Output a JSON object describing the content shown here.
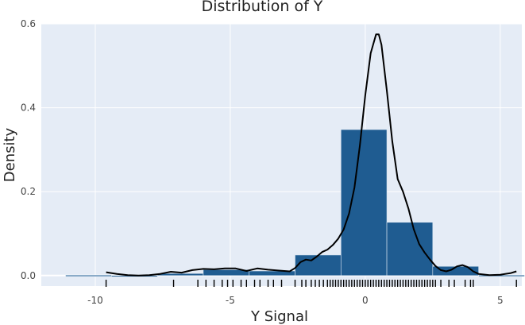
{
  "chart_data": {
    "type": "histogram",
    "title": "Distribution of Y",
    "xlabel": "Y Signal",
    "ylabel": "Density",
    "xlim": [
      -12,
      5.8
    ],
    "ylim": [
      -0.025,
      0.6
    ],
    "x_ticks": [
      -10,
      -5,
      0,
      5
    ],
    "x_tick_labels": [
      "-10",
      "-5",
      "0",
      "5"
    ],
    "y_ticks": [
      0,
      0.2,
      0.4,
      0.6
    ],
    "y_tick_labels": [
      "0.0",
      "0.2",
      "0.4",
      "0.6"
    ],
    "grid": true,
    "colors": {
      "plot_bg": "#e5ecf6",
      "grid": "#ffffff",
      "bar": "#1f5c91",
      "bar_edge": "#dfe9f3",
      "kde": "#000000",
      "rug": "#000000"
    },
    "bins": [
      {
        "x0": -11.1,
        "x1": -9.4,
        "density": 0.001
      },
      {
        "x0": -9.4,
        "x1": -7.7,
        "density": 0.0
      },
      {
        "x0": -7.7,
        "x1": -6.0,
        "density": 0.005
      },
      {
        "x0": -6.0,
        "x1": -4.3,
        "density": 0.014
      },
      {
        "x0": -4.3,
        "x1": -2.6,
        "density": 0.011
      },
      {
        "x0": -2.6,
        "x1": -0.9,
        "density": 0.049
      },
      {
        "x0": -0.9,
        "x1": 0.8,
        "density": 0.348
      },
      {
        "x0": 0.8,
        "x1": 2.5,
        "density": 0.127
      },
      {
        "x0": 2.5,
        "x1": 4.2,
        "density": 0.022
      },
      {
        "x0": 4.2,
        "x1": 5.9,
        "density": 0.001
      }
    ],
    "kde": {
      "x": [
        -9.6,
        -9.2,
        -8.8,
        -8.4,
        -8.0,
        -7.6,
        -7.2,
        -6.8,
        -6.4,
        -6.0,
        -5.6,
        -5.2,
        -4.8,
        -4.4,
        -4.0,
        -3.6,
        -3.2,
        -2.8,
        -2.6,
        -2.4,
        -2.2,
        -2.0,
        -1.8,
        -1.6,
        -1.4,
        -1.2,
        -1.0,
        -0.8,
        -0.6,
        -0.4,
        -0.2,
        0.0,
        0.2,
        0.4,
        0.5,
        0.6,
        0.8,
        1.0,
        1.2,
        1.4,
        1.6,
        1.8,
        2.0,
        2.2,
        2.4,
        2.6,
        2.8,
        3.0,
        3.2,
        3.4,
        3.6,
        3.8,
        4.0,
        4.2,
        4.6,
        5.0,
        5.4,
        5.6
      ],
      "y": [
        0.008,
        0.004,
        0.001,
        0.0,
        0.001,
        0.004,
        0.009,
        0.007,
        0.013,
        0.016,
        0.015,
        0.017,
        0.017,
        0.011,
        0.017,
        0.014,
        0.012,
        0.01,
        0.018,
        0.032,
        0.038,
        0.036,
        0.045,
        0.056,
        0.062,
        0.073,
        0.088,
        0.11,
        0.148,
        0.21,
        0.31,
        0.43,
        0.53,
        0.575,
        0.575,
        0.55,
        0.44,
        0.32,
        0.23,
        0.2,
        0.16,
        0.11,
        0.075,
        0.055,
        0.038,
        0.023,
        0.013,
        0.01,
        0.014,
        0.022,
        0.025,
        0.02,
        0.01,
        0.004,
        0.001,
        0.002,
        0.006,
        0.01
      ]
    },
    "rug": [
      -9.6,
      -7.1,
      -6.2,
      -5.9,
      -5.6,
      -5.3,
      -5.1,
      -4.9,
      -4.6,
      -4.4,
      -4.1,
      -3.9,
      -3.6,
      -3.4,
      -3.1,
      -2.6,
      -2.35,
      -2.2,
      -2.0,
      -1.85,
      -1.7,
      -1.55,
      -1.4,
      -1.3,
      -1.2,
      -1.1,
      -1.0,
      -0.9,
      -0.8,
      -0.7,
      -0.6,
      -0.5,
      -0.4,
      -0.3,
      -0.2,
      -0.1,
      0.0,
      0.1,
      0.2,
      0.3,
      0.4,
      0.5,
      0.6,
      0.7,
      0.8,
      0.9,
      1.0,
      1.1,
      1.2,
      1.3,
      1.4,
      1.5,
      1.6,
      1.7,
      1.8,
      1.9,
      2.0,
      2.1,
      2.2,
      2.3,
      2.4,
      2.5,
      2.6,
      2.8,
      3.1,
      3.3,
      3.7,
      3.9,
      4.0,
      5.6
    ]
  }
}
